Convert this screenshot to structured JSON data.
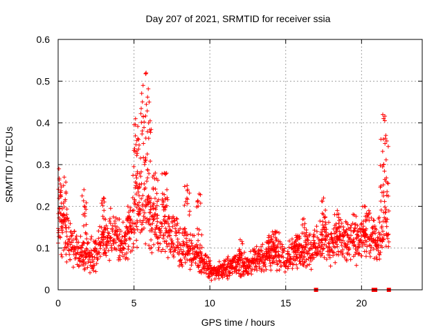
{
  "chart_data": {
    "type": "scatter",
    "title": "Day 207 of 2021, SRMTID for receiver ssia",
    "xlabel": "GPS time / hours",
    "ylabel": "SRMTID / TECUs",
    "xlim": [
      0,
      24
    ],
    "ylim": [
      0,
      0.6
    ],
    "xticks": [
      0,
      5,
      10,
      15,
      20
    ],
    "xtick_labels": [
      "0",
      "5",
      "10",
      "15",
      "20"
    ],
    "yticks": [
      0,
      0.1,
      0.2,
      0.3,
      0.4,
      0.5,
      0.6
    ],
    "ytick_labels": [
      "0",
      "0.1",
      "0.2",
      "0.3",
      "0.4",
      "0.5",
      "0.6"
    ],
    "grid": true,
    "marker": "+",
    "color": "#ff0000",
    "series": [
      {
        "name": "SRMTID",
        "envelope": [
          {
            "x": 0.0,
            "y": 0.16
          },
          {
            "x": 0.5,
            "y": 0.14
          },
          {
            "x": 1.0,
            "y": 0.1
          },
          {
            "x": 1.5,
            "y": 0.09
          },
          {
            "x": 2.0,
            "y": 0.08
          },
          {
            "x": 2.5,
            "y": 0.09
          },
          {
            "x": 3.0,
            "y": 0.12
          },
          {
            "x": 3.5,
            "y": 0.13
          },
          {
            "x": 4.0,
            "y": 0.12
          },
          {
            "x": 4.5,
            "y": 0.11
          },
          {
            "x": 5.0,
            "y": 0.18
          },
          {
            "x": 5.5,
            "y": 0.22
          },
          {
            "x": 6.0,
            "y": 0.18
          },
          {
            "x": 6.5,
            "y": 0.15
          },
          {
            "x": 7.0,
            "y": 0.16
          },
          {
            "x": 7.5,
            "y": 0.13
          },
          {
            "x": 8.0,
            "y": 0.11
          },
          {
            "x": 8.5,
            "y": 0.1
          },
          {
            "x": 9.0,
            "y": 0.09
          },
          {
            "x": 9.5,
            "y": 0.07
          },
          {
            "x": 10.0,
            "y": 0.05
          },
          {
            "x": 10.5,
            "y": 0.045
          },
          {
            "x": 11.0,
            "y": 0.05
          },
          {
            "x": 11.5,
            "y": 0.06
          },
          {
            "x": 12.0,
            "y": 0.06
          },
          {
            "x": 12.5,
            "y": 0.06
          },
          {
            "x": 13.0,
            "y": 0.07
          },
          {
            "x": 13.5,
            "y": 0.08
          },
          {
            "x": 14.0,
            "y": 0.08
          },
          {
            "x": 14.5,
            "y": 0.09
          },
          {
            "x": 15.0,
            "y": 0.08
          },
          {
            "x": 15.5,
            "y": 0.09
          },
          {
            "x": 16.0,
            "y": 0.09
          },
          {
            "x": 16.5,
            "y": 0.1
          },
          {
            "x": 17.0,
            "y": 0.1
          },
          {
            "x": 17.5,
            "y": 0.12
          },
          {
            "x": 18.0,
            "y": 0.11
          },
          {
            "x": 18.5,
            "y": 0.12
          },
          {
            "x": 19.0,
            "y": 0.12
          },
          {
            "x": 19.5,
            "y": 0.12
          },
          {
            "x": 20.0,
            "y": 0.12
          },
          {
            "x": 20.5,
            "y": 0.13
          },
          {
            "x": 21.0,
            "y": 0.11
          },
          {
            "x": 21.5,
            "y": 0.17
          },
          {
            "x": 21.8,
            "y": 0.15
          }
        ],
        "peaks": [
          {
            "x": 0.05,
            "y": 0.29
          },
          {
            "x": 0.4,
            "y": 0.27
          },
          {
            "x": 1.7,
            "y": 0.24
          },
          {
            "x": 3.0,
            "y": 0.22
          },
          {
            "x": 4.6,
            "y": 0.2
          },
          {
            "x": 5.1,
            "y": 0.41
          },
          {
            "x": 5.3,
            "y": 0.36
          },
          {
            "x": 5.6,
            "y": 0.49
          },
          {
            "x": 5.8,
            "y": 0.52
          },
          {
            "x": 6.0,
            "y": 0.45
          },
          {
            "x": 6.4,
            "y": 0.28
          },
          {
            "x": 7.0,
            "y": 0.28
          },
          {
            "x": 8.5,
            "y": 0.25
          },
          {
            "x": 9.3,
            "y": 0.23
          },
          {
            "x": 12.0,
            "y": 0.12
          },
          {
            "x": 13.9,
            "y": 0.13
          },
          {
            "x": 14.3,
            "y": 0.14
          },
          {
            "x": 15.8,
            "y": 0.13
          },
          {
            "x": 16.2,
            "y": 0.17
          },
          {
            "x": 17.5,
            "y": 0.22
          },
          {
            "x": 18.4,
            "y": 0.19
          },
          {
            "x": 20.2,
            "y": 0.2
          },
          {
            "x": 21.4,
            "y": 0.42
          },
          {
            "x": 21.6,
            "y": 0.37
          }
        ],
        "gaps_at_zero": [
          17.0,
          20.8,
          20.9,
          21.8
        ]
      }
    ]
  }
}
